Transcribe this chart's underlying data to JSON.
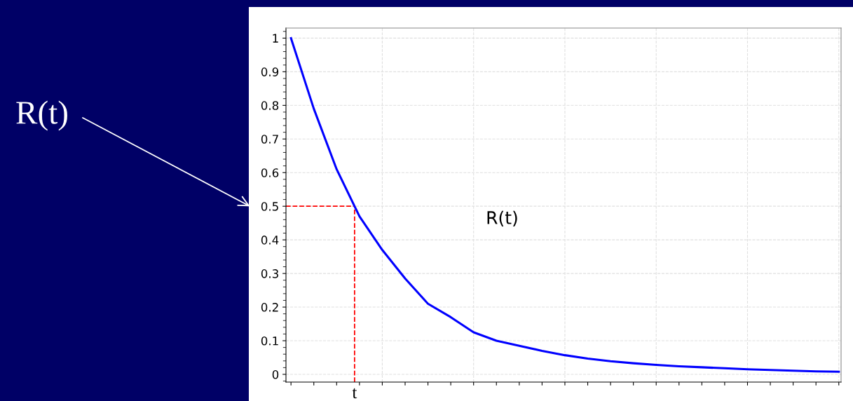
{
  "chart_data": {
    "type": "line",
    "categories": [
      null,
      null,
      null,
      null,
      null,
      null,
      null,
      null,
      null,
      null,
      null,
      null,
      null,
      null,
      null,
      null,
      null,
      null,
      null,
      null,
      null,
      null,
      null,
      null,
      null
    ],
    "series": [
      {
        "color": "#0000ff",
        "values": [
          1.0,
          0.79,
          0.61,
          0.47,
          0.37,
          0.285,
          0.21,
          0.17,
          0.125,
          0.1,
          0.085,
          0.07,
          0.057,
          0.047,
          0.039,
          0.033,
          0.028,
          0.024,
          0.021,
          0.018,
          0.015,
          0.013,
          0.011,
          0.009,
          0.008
        ]
      }
    ],
    "ylim": [
      -0.023,
      1.03
    ],
    "yticks": [
      0,
      0.1,
      0.2,
      0.3,
      0.4,
      0.5,
      0.6,
      0.7,
      0.8,
      0.9,
      1
    ],
    "grid": true,
    "marker": "none",
    "line_style": "solid",
    "ref_lines": [
      {
        "axis": "y",
        "value": 0.5,
        "color": "#ff0000",
        "line_style": "dashed"
      },
      {
        "axis": "x",
        "label": "t",
        "color": "#ff0000",
        "line_style": "dashed"
      }
    ],
    "annotations": [
      "R(t)",
      "R(t)"
    ]
  }
}
